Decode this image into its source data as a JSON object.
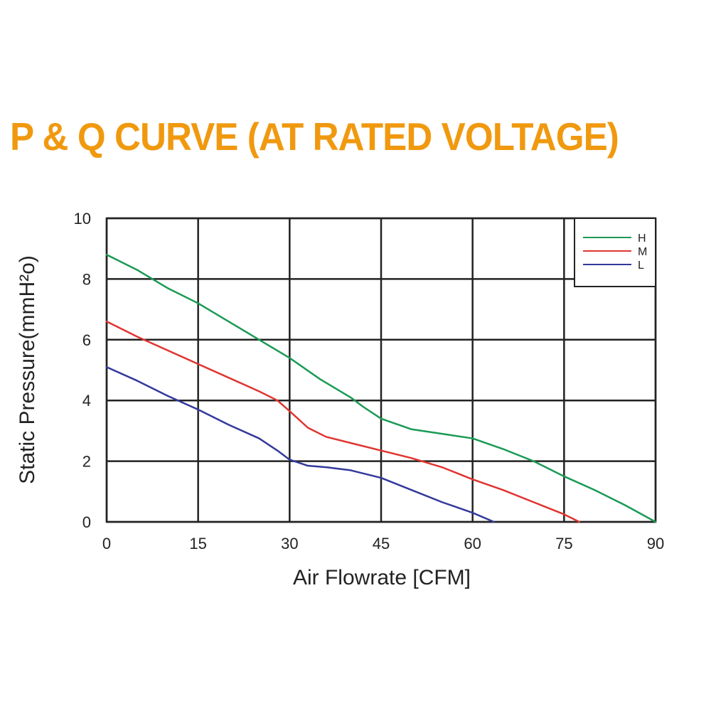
{
  "chart_data": {
    "type": "line",
    "title": "P & Q CURVE (AT RATED VOLTAGE)",
    "title_color": "#F0990F",
    "xlabel": "Air  Flowrate   [CFM]",
    "ylabel": "Static Pressure(mmH²o)",
    "xlim": [
      0,
      90
    ],
    "ylim": [
      0,
      10
    ],
    "x_ticks": [
      "0",
      "15",
      "30",
      "45",
      "60",
      "75",
      "90"
    ],
    "y_ticks": [
      "0",
      "2",
      "4",
      "6",
      "8",
      "10"
    ],
    "grid": true,
    "legend_position": "top-right",
    "series": [
      {
        "name": "H",
        "color": "#1a9a55",
        "x": [
          0,
          5,
          10,
          15,
          20,
          25,
          30,
          35,
          40,
          42,
          45,
          50,
          55,
          60,
          65,
          70,
          75,
          80,
          85,
          90
        ],
        "y": [
          8.8,
          8.3,
          7.7,
          7.2,
          6.6,
          6.0,
          5.4,
          4.7,
          4.1,
          3.8,
          3.4,
          3.05,
          2.9,
          2.75,
          2.4,
          2.0,
          1.5,
          1.05,
          0.55,
          0.0
        ]
      },
      {
        "name": "M",
        "color": "#e03530",
        "x": [
          0,
          5,
          10,
          15,
          20,
          25,
          28,
          30,
          33,
          36,
          40,
          45,
          50,
          55,
          60,
          65,
          70,
          75,
          77.5
        ],
        "y": [
          6.6,
          6.1,
          5.65,
          5.2,
          4.75,
          4.3,
          4.0,
          3.65,
          3.1,
          2.8,
          2.6,
          2.35,
          2.1,
          1.8,
          1.4,
          1.05,
          0.65,
          0.25,
          0.0
        ]
      },
      {
        "name": "L",
        "color": "#33399b",
        "x": [
          0,
          5,
          10,
          15,
          20,
          25,
          28,
          30,
          33,
          36,
          40,
          45,
          50,
          55,
          60,
          63.5
        ],
        "y": [
          5.1,
          4.65,
          4.15,
          3.7,
          3.2,
          2.75,
          2.35,
          2.05,
          1.85,
          1.8,
          1.7,
          1.45,
          1.05,
          0.65,
          0.3,
          0.0
        ]
      }
    ]
  }
}
